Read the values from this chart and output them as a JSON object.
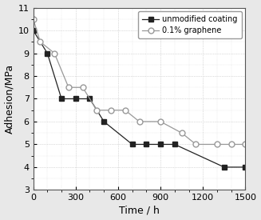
{
  "unmodified_x": [
    0,
    100,
    200,
    300,
    400,
    500,
    700,
    800,
    900,
    1000,
    1350,
    1500
  ],
  "unmodified_y": [
    10.0,
    9.0,
    7.0,
    7.0,
    7.0,
    6.0,
    5.0,
    5.0,
    5.0,
    5.0,
    4.0,
    4.0
  ],
  "graphene_x": [
    0,
    50,
    150,
    250,
    350,
    450,
    550,
    650,
    750,
    900,
    1050,
    1150,
    1300,
    1400,
    1500
  ],
  "graphene_y": [
    10.5,
    9.5,
    9.0,
    7.5,
    7.5,
    6.5,
    6.5,
    6.5,
    6.0,
    6.0,
    5.5,
    5.0,
    5.0,
    5.0,
    5.0
  ],
  "xlabel": "Time / h",
  "ylabel": "Adhesion/MPa",
  "xlim": [
    0,
    1500
  ],
  "ylim": [
    3,
    11
  ],
  "xticks": [
    0,
    300,
    600,
    900,
    1200,
    1500
  ],
  "yticks": [
    3,
    4,
    5,
    6,
    7,
    8,
    9,
    10,
    11
  ],
  "legend_unmodified": "unmodified coating",
  "legend_graphene": "0.1% graphene",
  "line_color_unmodified": "#222222",
  "line_color_graphene": "#999999",
  "marker_unmodified": "s",
  "marker_graphene": "o",
  "grid_color": "#bbbbbb",
  "background_color": "#e8e8e8",
  "plot_bg_color": "#ffffff"
}
